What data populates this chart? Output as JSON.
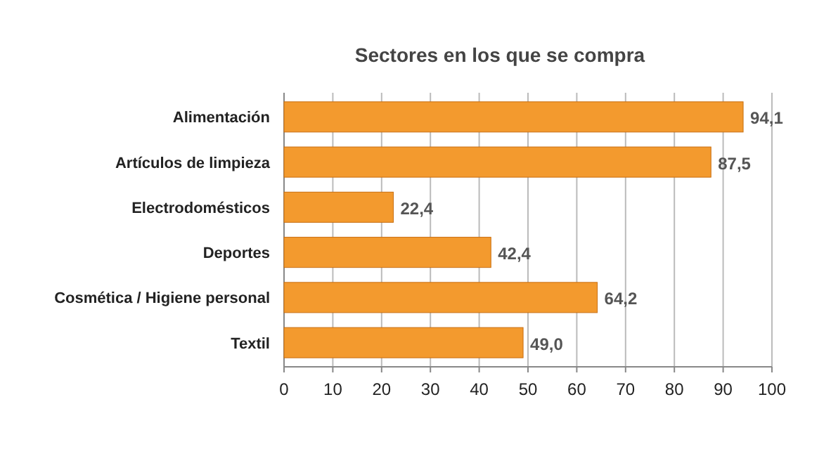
{
  "chart_data": {
    "type": "bar",
    "orientation": "horizontal",
    "title": "Sectores en los que se compra",
    "categories": [
      "Alimentación",
      "Artículos de limpieza",
      "Electrodomésticos",
      "Deportes",
      "Cosmética / Higiene personal",
      "Textil"
    ],
    "values": [
      94.1,
      87.5,
      22.4,
      42.4,
      64.2,
      49.0
    ],
    "value_labels": [
      "94,1",
      "87,5",
      "22,4",
      "42,4",
      "64,2",
      "49,0"
    ],
    "color": "#f39a2e",
    "xlim": [
      0,
      100
    ],
    "xticks": [
      0,
      10,
      20,
      30,
      40,
      50,
      60,
      70,
      80,
      90,
      100
    ],
    "grid": "x"
  }
}
